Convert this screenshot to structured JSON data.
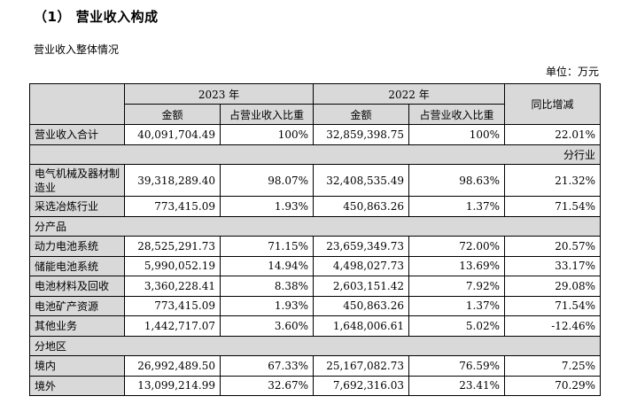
{
  "heading": "（1）  营业收入构成",
  "subtitle": "营业收入整体情况",
  "unit": "单位：万元",
  "header": {
    "year_2023": "2023 年",
    "year_2022": "2022 年",
    "amount": "金额",
    "share": "占营业收入比重",
    "yoy": "同比增减"
  },
  "total": {
    "label": "营业收入合计",
    "a23": "40,091,704.49",
    "s23": "100%",
    "a22": "32,859,398.75",
    "s22": "100%",
    "yoy": "22.01%"
  },
  "sections": {
    "industry": "分行业",
    "product": "分产品",
    "region": "分地区"
  },
  "industry_rows": [
    {
      "label": "电气机械及器材制造业",
      "a23": "39,318,289.40",
      "s23": "98.07%",
      "a22": "32,408,535.49",
      "s22": "98.63%",
      "yoy": "21.32%"
    },
    {
      "label": "采选冶炼行业",
      "a23": "773,415.09",
      "s23": "1.93%",
      "a22": "450,863.26",
      "s22": "1.37%",
      "yoy": "71.54%"
    }
  ],
  "product_rows": [
    {
      "label": "动力电池系统",
      "a23": "28,525,291.73",
      "s23": "71.15%",
      "a22": "23,659,349.73",
      "s22": "72.00%",
      "yoy": "20.57%"
    },
    {
      "label": "储能电池系统",
      "a23": "5,990,052.19",
      "s23": "14.94%",
      "a22": "4,498,027.73",
      "s22": "13.69%",
      "yoy": "33.17%"
    },
    {
      "label": "电池材料及回收",
      "a23": "3,360,228.41",
      "s23": "8.38%",
      "a22": "2,603,151.42",
      "s22": "7.92%",
      "yoy": "29.08%"
    },
    {
      "label": "电池矿产资源",
      "a23": "773,415.09",
      "s23": "1.93%",
      "a22": "450,863.26",
      "s22": "1.37%",
      "yoy": "71.54%"
    },
    {
      "label": "其他业务",
      "a23": "1,442,717.07",
      "s23": "3.60%",
      "a22": "1,648,006.61",
      "s22": "5.02%",
      "yoy": "-12.46%"
    }
  ],
  "region_rows": [
    {
      "label": "境内",
      "a23": "26,992,489.50",
      "s23": "67.33%",
      "a22": "25,167,082.73",
      "s22": "76.59%",
      "yoy": "7.25%"
    },
    {
      "label": "境外",
      "a23": "13,099,214.99",
      "s23": "32.67%",
      "a22": "7,692,316.03",
      "s22": "23.41%",
      "yoy": "70.29%"
    }
  ]
}
